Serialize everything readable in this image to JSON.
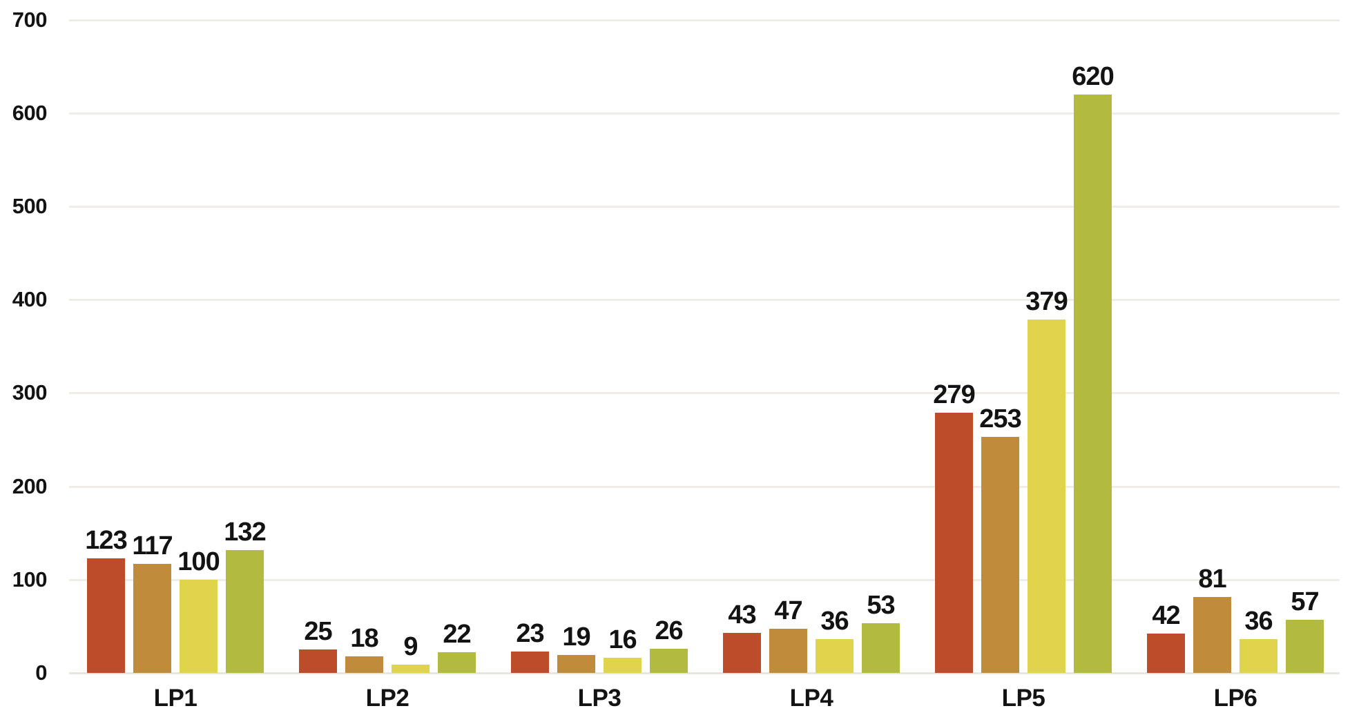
{
  "chart_data": {
    "type": "bar",
    "title": "",
    "categories": [
      "LP1",
      "LP2",
      "LP3",
      "LP4",
      "LP5",
      "LP6"
    ],
    "series": [
      {
        "color": "#bd4c2b",
        "values": [
          123,
          25,
          23,
          43,
          279,
          42
        ]
      },
      {
        "color": "#c08c3c",
        "values": [
          117,
          18,
          19,
          47,
          253,
          81
        ]
      },
      {
        "color": "#e0d44c",
        "values": [
          100,
          9,
          16,
          36,
          379,
          36
        ]
      },
      {
        "color": "#b2ba40",
        "values": [
          132,
          22,
          26,
          53,
          620,
          57
        ]
      }
    ],
    "y_axis": {
      "ticks": [
        0,
        100,
        200,
        300,
        400,
        500,
        600,
        700
      ],
      "range": [
        0,
        700
      ]
    },
    "grid": true,
    "value_labels": true,
    "legend": "none",
    "colors": {
      "background": "#ffffff",
      "gridline": "#f0ede7",
      "axis_line": "#e9e6df",
      "text": "#131313"
    }
  }
}
